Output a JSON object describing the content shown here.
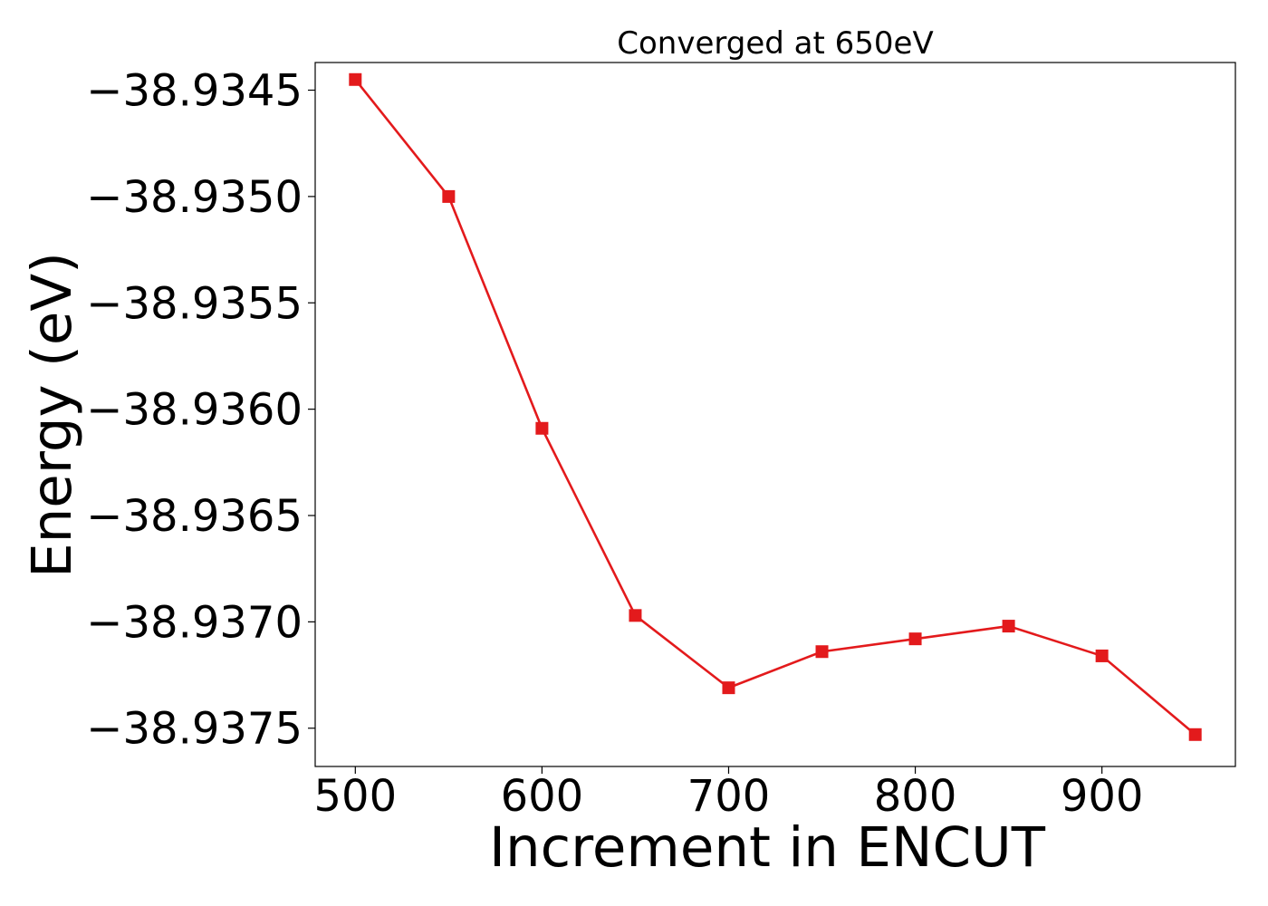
{
  "chart_data": {
    "type": "line",
    "title": "Converged at 650eV",
    "xlabel": "Increment in ENCUT",
    "ylabel": "Energy (eV)",
    "x": [
      500,
      550,
      600,
      650,
      700,
      750,
      800,
      850,
      900,
      950
    ],
    "series": [
      {
        "values": [
          -38.93445,
          -38.935,
          -38.93609,
          -38.93697,
          -38.93731,
          -38.93714,
          -38.93708,
          -38.93702,
          -38.93716,
          -38.93753
        ],
        "color": "#e31a1c",
        "marker": "square"
      }
    ],
    "xticks": [
      500,
      600,
      700,
      800,
      900
    ],
    "xtick_labels": [
      "500",
      "600",
      "700",
      "800",
      "900"
    ],
    "yticks": [
      -38.9345,
      -38.935,
      -38.9355,
      -38.936,
      -38.9365,
      -38.937,
      -38.9375
    ],
    "ytick_labels": [
      "−38.9345",
      "−38.9350",
      "−38.9355",
      "−38.9360",
      "−38.9365",
      "−38.9370",
      "−38.9375"
    ],
    "xlim": [
      478.5,
      971.5
    ],
    "ylim": [
      -38.93768,
      -38.93437
    ],
    "grid": false,
    "legend": "none"
  }
}
